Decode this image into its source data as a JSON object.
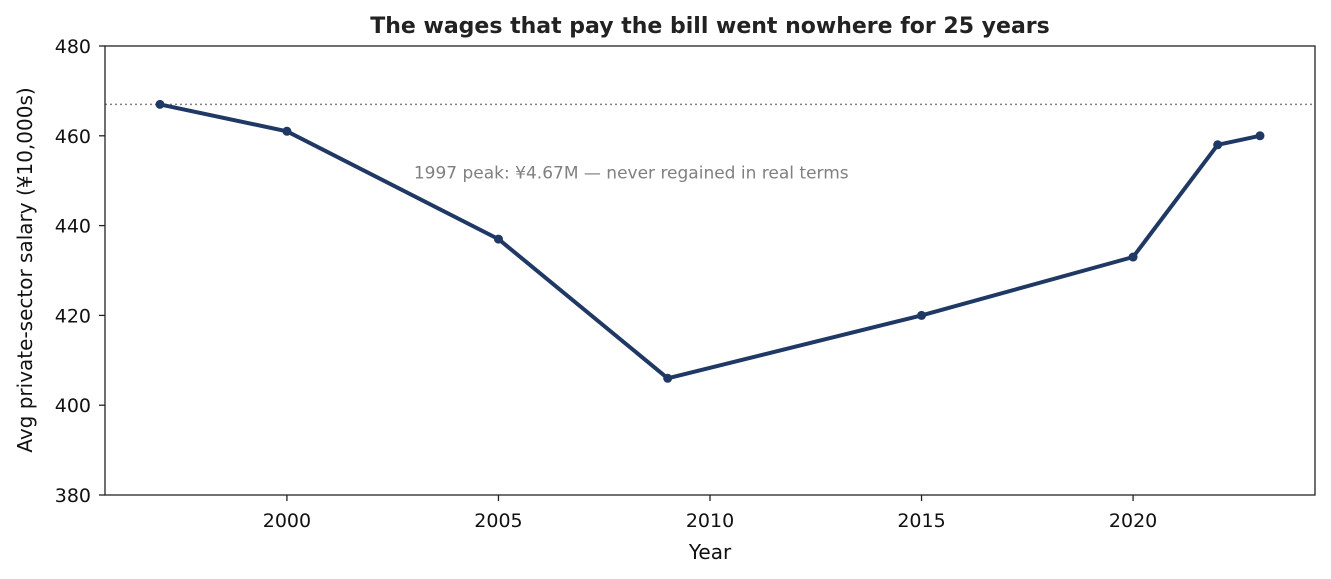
{
  "chart_data": {
    "type": "line",
    "title": "The wages that pay the bill went nowhere for 25 years",
    "xlabel": "Year",
    "ylabel": "Avg private-sector salary (¥10,000s)",
    "xlim": [
      1995.7,
      2024.3
    ],
    "ylim": [
      380,
      480
    ],
    "xticks": [
      2000,
      2005,
      2010,
      2015,
      2020
    ],
    "yticks": [
      380,
      400,
      420,
      440,
      460,
      480
    ],
    "grid": false,
    "series": [
      {
        "x": [
          1997,
          2000,
          2005,
          2009,
          2015,
          2020,
          2022,
          2023
        ],
        "values": [
          467,
          461,
          437,
          406,
          420,
          433,
          458,
          460
        ],
        "color": "#1f3864",
        "marker": "circle"
      }
    ],
    "reference_line": {
      "y": 467,
      "style": "dotted",
      "color": "#808080"
    },
    "annotation": {
      "text": "1997 peak: ¥4.67M — never regained in real terms",
      "x": 2003,
      "y": 450.5
    }
  }
}
